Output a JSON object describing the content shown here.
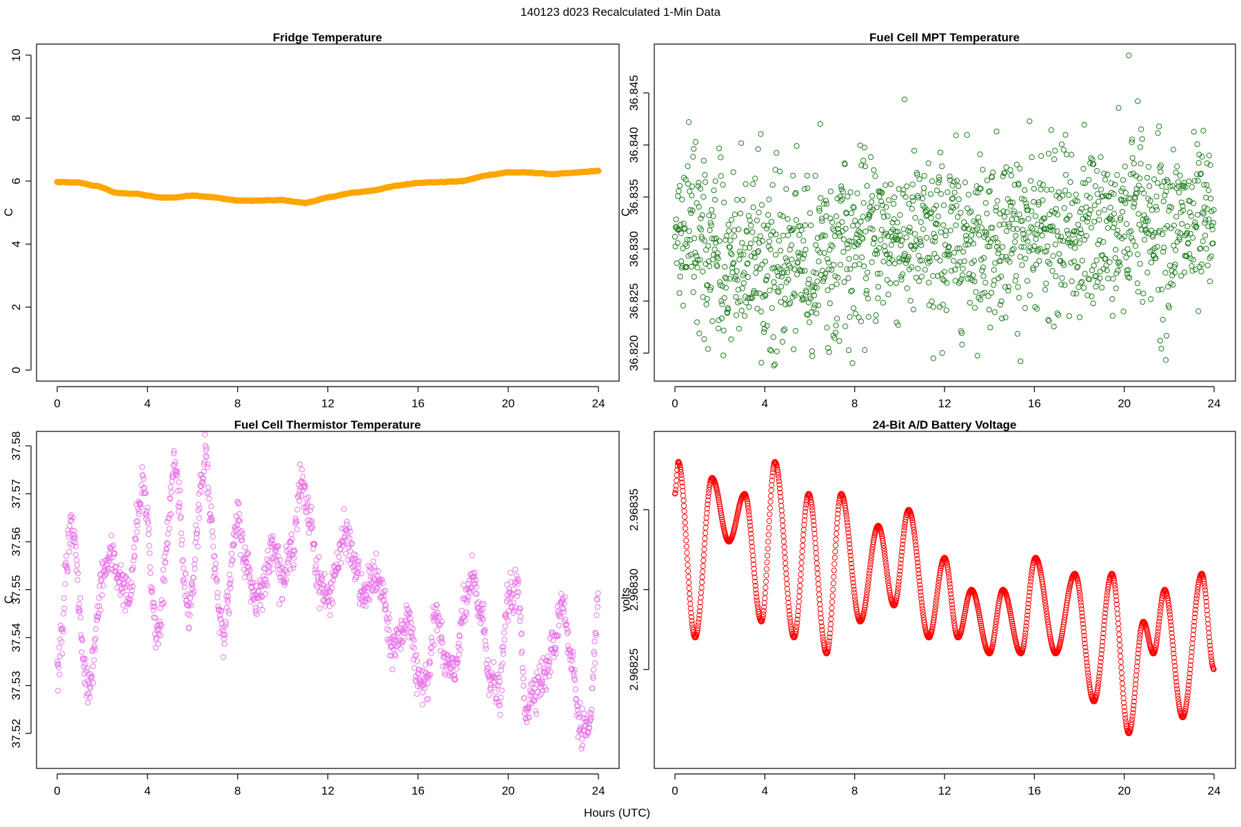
{
  "figure": {
    "title": "140123   d023   Recalculated 1-Min Data",
    "xlabel": "Hours (UTC)"
  },
  "chart_data": [
    {
      "type": "line",
      "title": "Fridge Temperature",
      "ylabel": "C",
      "xlim": [
        0,
        24
      ],
      "ylim": [
        0,
        10
      ],
      "xticks": [
        0,
        4,
        8,
        12,
        16,
        20,
        24
      ],
      "yticks": [
        0,
        2,
        4,
        6,
        8,
        10
      ],
      "ytick_labels": [
        "0",
        "2",
        "4",
        "6",
        "8",
        "10"
      ],
      "grid": false,
      "color": "#ffa500",
      "marker": "filled-thick",
      "x": [
        0,
        1,
        2,
        2.6,
        3.5,
        4.5,
        5.2,
        6,
        7,
        8,
        9,
        10,
        11,
        12,
        13,
        14,
        15,
        16,
        17,
        18,
        19,
        20,
        21,
        22,
        23,
        24
      ],
      "y": [
        5.97,
        5.95,
        5.8,
        5.62,
        5.6,
        5.48,
        5.48,
        5.55,
        5.48,
        5.38,
        5.38,
        5.4,
        5.3,
        5.48,
        5.62,
        5.7,
        5.85,
        5.95,
        5.97,
        6.0,
        6.18,
        6.28,
        6.27,
        6.22,
        6.27,
        6.33
      ]
    },
    {
      "type": "scatter",
      "title": "Fuel Cell MPT Temperature",
      "ylabel": "C",
      "xlim": [
        0,
        24
      ],
      "ylim": [
        36.8185,
        36.8485
      ],
      "xticks": [
        0,
        4,
        8,
        12,
        16,
        20,
        24
      ],
      "yticks": [
        36.82,
        36.825,
        36.83,
        36.835,
        36.84,
        36.845
      ],
      "ytick_labels": [
        "36.820",
        "36.825",
        "36.830",
        "36.835",
        "36.840",
        "36.845"
      ],
      "grid": false,
      "color": "#1a7a1a",
      "marker": "open-circle",
      "x": [
        0.0,
        0.5,
        1.0,
        1.5,
        2.0,
        2.5,
        3.0,
        3.5,
        4.0,
        4.5,
        5.0,
        5.5,
        6.0,
        6.5,
        7.0,
        7.5,
        8.0,
        8.5,
        9.0,
        9.5,
        10.0,
        10.5,
        11.0,
        11.5,
        12.0,
        12.5,
        13.0,
        13.5,
        14.0,
        14.5,
        15.0,
        15.5,
        16.0,
        16.5,
        17.0,
        17.5,
        18.0,
        18.5,
        19.0,
        19.5,
        20.0,
        20.5,
        21.0,
        21.5,
        22.0,
        22.5,
        23.0,
        23.5,
        24.0
      ],
      "y": [
        36.8315,
        36.8318,
        36.8305,
        36.8302,
        36.8293,
        36.8287,
        36.8285,
        36.8288,
        36.829,
        36.8282,
        36.8285,
        36.8287,
        36.8288,
        36.829,
        36.8293,
        36.8298,
        36.8303,
        36.8307,
        36.8312,
        36.8313,
        36.8312,
        36.831,
        36.8307,
        36.8305,
        36.8308,
        36.831,
        36.8312,
        36.8313,
        36.8315,
        36.8317,
        36.8318,
        36.8315,
        36.8313,
        36.8312,
        36.831,
        36.8312,
        36.8315,
        36.8318,
        36.832,
        36.8322,
        36.8325,
        36.8333,
        36.8328,
        36.8325,
        36.8322,
        36.832,
        36.8318,
        36.8318,
        36.832
      ],
      "spread": 0.0045,
      "note_points": [
        {
          "x": 20.2,
          "y": 36.8486
        },
        {
          "x": 20.6,
          "y": 36.8442
        },
        {
          "x": 11.5,
          "y": 36.8195
        },
        {
          "x": 4.4,
          "y": 36.8188
        }
      ]
    },
    {
      "type": "scatter",
      "title": "Fuel Cell Thermistor Temperature",
      "ylabel": "C",
      "xlim": [
        0,
        24
      ],
      "ylim": [
        37.515,
        37.581
      ],
      "xticks": [
        0,
        4,
        8,
        12,
        16,
        20,
        24
      ],
      "yticks": [
        37.52,
        37.53,
        37.54,
        37.55,
        37.56,
        37.57,
        37.58
      ],
      "ytick_labels": [
        "37.52",
        "37.53",
        "37.54",
        "37.55",
        "37.56",
        "37.57",
        "37.58"
      ],
      "grid": false,
      "color": "#e874e8",
      "marker": "open-circle",
      "x": [
        0.0,
        0.2,
        0.4,
        0.6,
        0.8,
        1.0,
        1.2,
        1.4,
        1.6,
        1.8,
        2.0,
        2.4,
        2.8,
        3.2,
        3.6,
        3.8,
        4.0,
        4.2,
        4.4,
        4.6,
        4.8,
        5.0,
        5.2,
        5.4,
        5.6,
        5.8,
        6.0,
        6.2,
        6.4,
        6.6,
        6.8,
        7.0,
        7.2,
        7.4,
        7.6,
        7.8,
        8.0,
        8.4,
        8.8,
        9.2,
        9.6,
        10.0,
        10.4,
        10.8,
        11.2,
        11.6,
        12.0,
        12.4,
        12.8,
        13.2,
        13.6,
        14.0,
        14.4,
        14.8,
        15.2,
        15.6,
        16.0,
        16.4,
        16.8,
        17.2,
        17.6,
        18.0,
        18.4,
        18.8,
        19.2,
        19.6,
        20.0,
        20.4,
        20.8,
        21.2,
        21.6,
        22.0,
        22.4,
        22.8,
        23.2,
        23.6,
        24.0
      ],
      "y": [
        37.532,
        37.54,
        37.555,
        37.563,
        37.56,
        37.545,
        37.532,
        37.53,
        37.535,
        37.545,
        37.553,
        37.557,
        37.552,
        37.548,
        37.565,
        37.573,
        37.565,
        37.55,
        37.54,
        37.545,
        37.555,
        37.568,
        37.577,
        37.57,
        37.555,
        37.545,
        37.55,
        37.562,
        37.572,
        37.578,
        37.565,
        37.555,
        37.545,
        37.542,
        37.548,
        37.558,
        37.565,
        37.555,
        37.548,
        37.552,
        37.56,
        37.552,
        37.558,
        37.572,
        37.565,
        37.552,
        37.548,
        37.555,
        37.562,
        37.555,
        37.548,
        37.553,
        37.55,
        37.538,
        37.54,
        37.545,
        37.53,
        37.532,
        37.545,
        37.535,
        37.532,
        37.545,
        37.552,
        37.545,
        37.532,
        37.528,
        37.548,
        37.55,
        37.525,
        37.53,
        37.532,
        37.538,
        37.548,
        37.535,
        37.522,
        37.52,
        37.548
      ],
      "spread": 0.004
    },
    {
      "type": "scatter",
      "title": "24-Bit A/D Battery Voltage",
      "ylabel": "volts",
      "xlim": [
        0,
        24
      ],
      "ylim": [
        2.968195,
        2.968393
      ],
      "xticks": [
        0,
        4,
        8,
        12,
        16,
        20,
        24
      ],
      "yticks": [
        2.96825,
        2.9683,
        2.96835
      ],
      "ytick_labels": [
        "2.96825",
        "2.96830",
        "2.96835"
      ],
      "grid": false,
      "color": "#ff0000",
      "marker": "open-circle",
      "peaks_troughs_x": [
        0.0,
        0.15,
        0.9,
        1.65,
        2.4,
        3.1,
        3.85,
        4.45,
        5.3,
        5.95,
        6.75,
        7.4,
        8.25,
        9.05,
        9.75,
        10.4,
        11.3,
        12.0,
        12.6,
        13.2,
        14.0,
        14.6,
        15.4,
        16.05,
        16.95,
        17.8,
        18.65,
        19.45,
        20.2,
        20.85,
        21.3,
        21.8,
        22.6,
        23.45,
        24.0
      ],
      "peaks_troughs_y": [
        2.96836,
        2.96838,
        2.96827,
        2.96837,
        2.96833,
        2.96836,
        2.96828,
        2.96838,
        2.96827,
        2.96836,
        2.96826,
        2.96836,
        2.96828,
        2.96834,
        2.96829,
        2.96835,
        2.96827,
        2.96832,
        2.96827,
        2.9683,
        2.96826,
        2.9683,
        2.96826,
        2.96832,
        2.96826,
        2.96831,
        2.96823,
        2.96831,
        2.96821,
        2.96828,
        2.96826,
        2.9683,
        2.96822,
        2.96831,
        2.96825
      ]
    }
  ]
}
